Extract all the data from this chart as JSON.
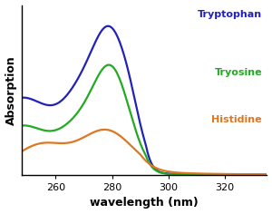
{
  "title": "",
  "xlabel": "wavelength (nm)",
  "ylabel": "Absorption",
  "xlim": [
    248,
    335
  ],
  "ylim": [
    0,
    1.05
  ],
  "colors": {
    "tryptophan": "#2222bb",
    "tyrosine": "#22aa22",
    "histidine": "#dd7722"
  },
  "labels": {
    "tryptophan": "Tryptophan",
    "tyrosine": "Tryosine",
    "histidine": "Histidine"
  },
  "background": "#ffffff",
  "xticks": [
    260,
    280,
    300,
    320
  ],
  "xlabel_fontsize": 9,
  "ylabel_fontsize": 9,
  "label_fontsize": 8,
  "linewidth": 1.6
}
